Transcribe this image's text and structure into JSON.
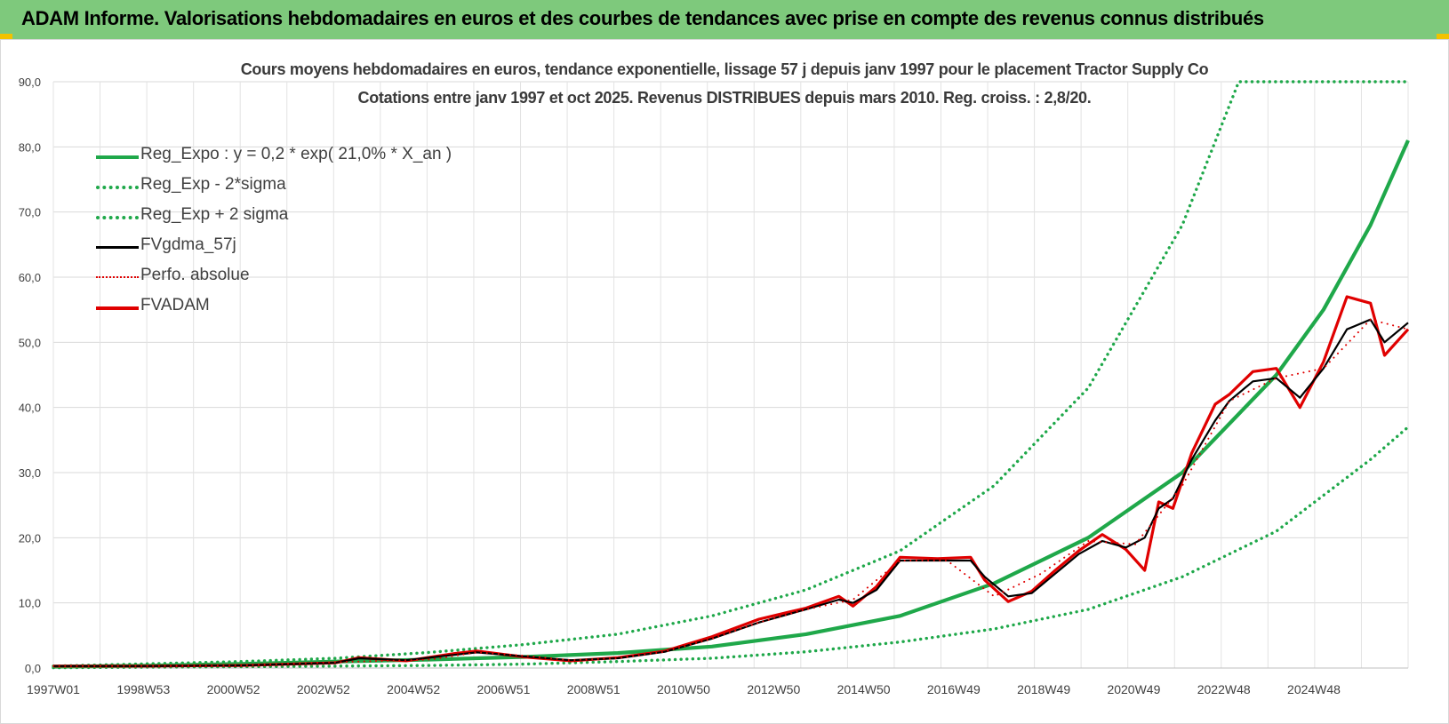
{
  "banner": {
    "title": "ADAM Informe. Valorisations hebdomadaires en euros et des courbes de tendances avec prise en compte des revenus connus distribués"
  },
  "chart_data": {
    "type": "line",
    "title": "Cours moyens hebdomadaires en euros, tendance exponentielle, lissage 57 j depuis janv 1997 pour le placement Tractor Supply Co",
    "subtitle": "Cotations entre janv 1997 et oct 2025. Revenus DISTRIBUES depuis mars 2010. Reg. croiss. : 2,8/20.",
    "xlabel": "",
    "ylabel": "",
    "x_ticks": [
      "1997W01",
      "1998W53",
      "2000W52",
      "2002W52",
      "2004W52",
      "2006W51",
      "2008W51",
      "2010W50",
      "2012W50",
      "2014W50",
      "2016W49",
      "2018W49",
      "2020W49",
      "2022W48",
      "2024W48"
    ],
    "y_ticks": [
      "0,0",
      "10,0",
      "20,0",
      "30,0",
      "40,0",
      "50,0",
      "60,0",
      "70,0",
      "80,0",
      "90,0"
    ],
    "ylim": [
      0,
      90
    ],
    "xlim": [
      1997.0,
      2025.8
    ],
    "grid": true,
    "legend_position": "top-left",
    "series": [
      {
        "name": "Reg_Expo : y = 0,2 * exp( 21,0% *  X_an )",
        "style": "solid-thick",
        "color": "#1fa84a",
        "x": [
          1997,
          1999,
          2001,
          2003,
          2005,
          2007,
          2009,
          2011,
          2013,
          2015,
          2017,
          2019,
          2021,
          2023,
          2024,
          2025,
          2025.8
        ],
        "y": [
          0.2,
          0.37,
          0.64,
          1.0,
          1.3,
          1.7,
          2.3,
          3.3,
          5.2,
          8.0,
          13.0,
          20.0,
          30.0,
          45.0,
          55.0,
          68.0,
          81.0
        ]
      },
      {
        "name": "Reg_Exp - 2*sigma",
        "style": "dotted",
        "color": "#1fa84a",
        "x": [
          1997,
          2001,
          2005,
          2007,
          2009,
          2011,
          2013,
          2015,
          2017,
          2019,
          2021,
          2023,
          2025,
          2025.8
        ],
        "y": [
          0.05,
          0.2,
          0.4,
          0.6,
          1.0,
          1.5,
          2.5,
          4.0,
          6.0,
          9.0,
          14.0,
          21.0,
          32.0,
          37.0
        ]
      },
      {
        "name": "Reg_Exp + 2 sigma",
        "style": "dotted",
        "color": "#1fa84a",
        "x": [
          1997,
          2001,
          2003,
          2005,
          2007,
          2009,
          2011,
          2013,
          2015,
          2017,
          2019,
          2021,
          2022.2,
          2023,
          2025.8
        ],
        "y": [
          0.3,
          1.0,
          1.5,
          2.4,
          3.6,
          5.2,
          8.0,
          12.0,
          18.0,
          28.0,
          43.0,
          68.0,
          90.0,
          90.0,
          90.0
        ]
      },
      {
        "name": "FVgdma_57j",
        "style": "solid",
        "color": "#000000",
        "x": [
          1997,
          1999,
          2001,
          2002,
          2003,
          2003.5,
          2004.5,
          2005.5,
          2006,
          2007,
          2008,
          2009,
          2010,
          2011,
          2012,
          2013,
          2013.7,
          2014,
          2014.5,
          2015,
          2015.8,
          2016.5,
          2016.8,
          2017.3,
          2017.8,
          2018.3,
          2018.8,
          2019.3,
          2019.8,
          2020.2,
          2020.5,
          2020.8,
          2021.2,
          2021.7,
          2022,
          2022.5,
          2023,
          2023.5,
          2024,
          2024.5,
          2025,
          2025.3,
          2025.8
        ],
        "y": [
          0.3,
          0.3,
          0.4,
          0.6,
          0.8,
          1.5,
          1.2,
          2.0,
          2.4,
          1.8,
          1.2,
          1.5,
          2.5,
          4.5,
          7.0,
          9.0,
          10.5,
          10.0,
          12.0,
          16.5,
          16.5,
          16.5,
          14.0,
          11.0,
          11.5,
          14.5,
          17.5,
          19.5,
          18.5,
          20.0,
          24.5,
          26.0,
          32.0,
          38.0,
          41.0,
          44.0,
          44.5,
          41.5,
          46.0,
          52.0,
          53.5,
          50.0,
          53.0
        ]
      },
      {
        "name": "Perfo. absolue",
        "style": "dotted",
        "color": "#e00000",
        "x": [
          1997,
          1999,
          2001,
          2003,
          2005,
          2006,
          2007,
          2008,
          2009,
          2010,
          2011,
          2012,
          2013,
          2014,
          2015,
          2016,
          2017,
          2018,
          2019,
          2020,
          2021,
          2022,
          2023,
          2024,
          2025,
          2025.8
        ],
        "y": [
          0.3,
          0.3,
          0.4,
          0.9,
          1.3,
          2.4,
          1.9,
          1.2,
          1.5,
          2.5,
          4.5,
          7.0,
          9.0,
          10.5,
          16.5,
          16.5,
          11.0,
          14.5,
          19.5,
          19.0,
          28.0,
          41.0,
          44.5,
          46.0,
          53.5,
          52.0
        ]
      },
      {
        "name": "FVADAM",
        "style": "solid-thick",
        "color": "#e00000",
        "x": [
          1997,
          1999,
          2001,
          2002,
          2003,
          2003.5,
          2004.5,
          2005.5,
          2006,
          2007,
          2008,
          2009,
          2010,
          2011,
          2012,
          2013,
          2013.7,
          2014,
          2014.5,
          2015,
          2015.8,
          2016.5,
          2016.8,
          2017.3,
          2017.8,
          2018.3,
          2018.8,
          2019.3,
          2019.8,
          2020.2,
          2020.5,
          2020.8,
          2021.2,
          2021.7,
          2022,
          2022.5,
          2023,
          2023.5,
          2024,
          2024.5,
          2025,
          2025.3,
          2025.8
        ],
        "y": [
          0.3,
          0.3,
          0.4,
          0.6,
          0.8,
          1.6,
          1.1,
          2.2,
          2.6,
          1.7,
          1.1,
          1.6,
          2.6,
          4.8,
          7.5,
          9.2,
          11.0,
          9.5,
          12.5,
          17.0,
          16.8,
          17.0,
          13.5,
          10.2,
          11.8,
          15.0,
          18.0,
          20.5,
          18.2,
          15.0,
          25.5,
          24.5,
          33.0,
          40.5,
          42.0,
          45.5,
          46.0,
          40.0,
          47.0,
          57.0,
          56.0,
          48.0,
          52.0
        ]
      }
    ]
  }
}
